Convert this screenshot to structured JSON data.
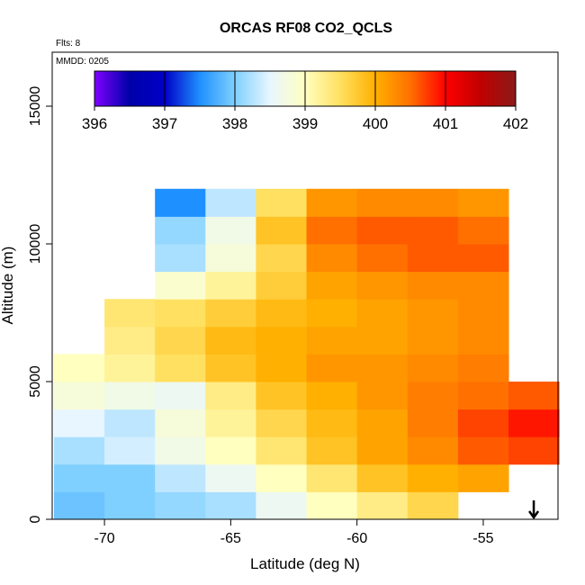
{
  "chart_data": {
    "type": "heatmap",
    "title": "ORCAS RF08 CO2_QCLS",
    "note_flights": "Flts: 8",
    "note_date": "MMDD: 0205",
    "xlabel": "Latitude (deg N)",
    "ylabel": "Altitude (m)",
    "xlim": [
      -72.07,
      -52.04
    ],
    "ylim": [
      0,
      16960
    ],
    "xticks": [
      -70,
      -65,
      -60,
      -55
    ],
    "yticks": [
      0,
      5000,
      10000,
      15000
    ],
    "x": [
      -72,
      -70,
      -68,
      -66,
      -64,
      -62,
      -60,
      -58,
      -56,
      -54,
      -52
    ],
    "y": [
      0,
      1000,
      2000,
      3000,
      4000,
      5000,
      6000,
      7000,
      8000,
      9000,
      10000,
      11000,
      12000
    ],
    "values": [
      [
        397.9,
        398.0,
        398.1,
        398.2,
        398.6,
        399.0,
        399.3,
        399.6,
        null,
        null
      ],
      [
        398.0,
        398.0,
        398.3,
        398.6,
        399.0,
        399.4,
        399.8,
        400.0,
        400.1,
        null
      ],
      [
        398.2,
        398.4,
        398.7,
        399.0,
        399.4,
        399.8,
        400.1,
        400.3,
        400.6,
        400.7
      ],
      [
        398.5,
        398.3,
        398.8,
        399.2,
        399.6,
        399.9,
        400.1,
        400.4,
        400.7,
        400.9
      ],
      [
        398.8,
        398.7,
        398.6,
        399.3,
        399.8,
        400.0,
        400.2,
        400.4,
        400.5,
        400.6
      ],
      [
        399.0,
        399.2,
        399.5,
        399.8,
        400.0,
        400.2,
        400.2,
        400.3,
        400.4,
        null
      ],
      [
        null,
        399.3,
        399.6,
        399.9,
        400.0,
        400.1,
        400.1,
        400.2,
        400.3,
        null
      ],
      [
        null,
        399.4,
        399.5,
        399.7,
        399.9,
        400.0,
        400.1,
        400.2,
        400.3,
        null
      ],
      [
        null,
        null,
        398.9,
        399.2,
        399.7,
        400.1,
        400.2,
        400.3,
        400.3,
        null
      ],
      [
        null,
        null,
        398.2,
        398.8,
        399.6,
        400.3,
        400.5,
        400.6,
        400.6,
        null
      ],
      [
        null,
        null,
        398.1,
        398.7,
        399.8,
        400.5,
        400.6,
        400.6,
        400.5,
        null
      ],
      [
        null,
        null,
        397.5,
        398.3,
        399.5,
        400.2,
        400.3,
        400.3,
        400.2,
        null
      ]
    ],
    "colorbar": {
      "range": [
        396,
        402
      ],
      "ticks": [
        396,
        397,
        398,
        399,
        400,
        401,
        402
      ],
      "colors": [
        "#7f00ff",
        "#0000a8",
        "#0000c8",
        "#1e90ff",
        "#7fd0ff",
        "#e8f6ff",
        "#ffffc0",
        "#ffe060",
        "#ffb000",
        "#ff7000",
        "#ff0000",
        "#c00000",
        "#8b1a1a"
      ]
    },
    "arrow_lat": -53
  }
}
